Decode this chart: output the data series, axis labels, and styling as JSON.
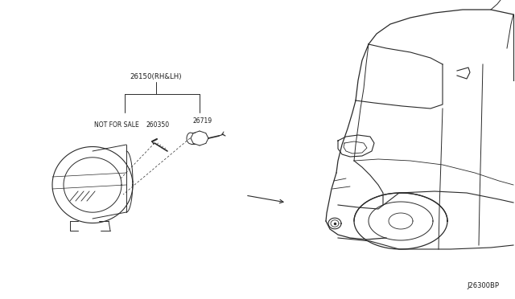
{
  "bg_color": "#ffffff",
  "line_color": "#2a2a2a",
  "text_color": "#1a1a1a",
  "fig_width": 6.4,
  "fig_height": 3.72,
  "part_label_main": "26150(RH&LH)",
  "part_label_screw": "260350",
  "part_label_bulb": "26719",
  "part_label_nfs": "NOT FOR SALE",
  "diagram_code": "J26300BP"
}
